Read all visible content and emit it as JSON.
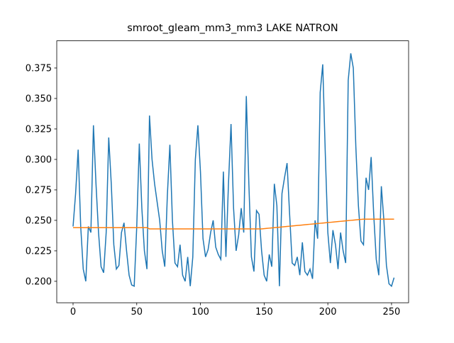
{
  "chart_data": {
    "type": "line",
    "title": "smroot_gleam_mm3_mm3 LAKE NATRON",
    "x": [
      0,
      2,
      4,
      6,
      8,
      10,
      12,
      14,
      16,
      18,
      20,
      22,
      24,
      26,
      28,
      30,
      32,
      34,
      36,
      38,
      40,
      42,
      44,
      46,
      48,
      50,
      52,
      54,
      56,
      58,
      60,
      62,
      64,
      66,
      68,
      70,
      72,
      74,
      76,
      78,
      80,
      82,
      84,
      86,
      88,
      90,
      92,
      94,
      96,
      98,
      100,
      102,
      104,
      106,
      108,
      110,
      112,
      114,
      116,
      118,
      120,
      122,
      124,
      126,
      128,
      130,
      132,
      134,
      136,
      138,
      140,
      142,
      144,
      146,
      148,
      150,
      152,
      154,
      156,
      158,
      160,
      162,
      164,
      166,
      168,
      170,
      172,
      174,
      176,
      178,
      180,
      182,
      184,
      186,
      188,
      190,
      192,
      194,
      196,
      198,
      200,
      202,
      204,
      206,
      208,
      210,
      212,
      214,
      216,
      218,
      220,
      222,
      224,
      226,
      228,
      230,
      232,
      234,
      236,
      238,
      240,
      242,
      244,
      246,
      248,
      250,
      252
    ],
    "series": [
      {
        "color": "#1f77b4",
        "values": [
          0.245,
          0.272,
          0.308,
          0.245,
          0.21,
          0.2,
          0.245,
          0.24,
          0.328,
          0.28,
          0.24,
          0.212,
          0.207,
          0.24,
          0.318,
          0.28,
          0.23,
          0.21,
          0.213,
          0.24,
          0.248,
          0.225,
          0.205,
          0.197,
          0.196,
          0.245,
          0.313,
          0.26,
          0.225,
          0.21,
          0.336,
          0.3,
          0.28,
          0.265,
          0.25,
          0.225,
          0.212,
          0.27,
          0.312,
          0.25,
          0.215,
          0.212,
          0.23,
          0.205,
          0.2,
          0.22,
          0.196,
          0.22,
          0.3,
          0.328,
          0.29,
          0.235,
          0.22,
          0.226,
          0.24,
          0.25,
          0.228,
          0.222,
          0.218,
          0.29,
          0.22,
          0.28,
          0.329,
          0.26,
          0.225,
          0.238,
          0.26,
          0.24,
          0.352,
          0.28,
          0.22,
          0.208,
          0.258,
          0.255,
          0.225,
          0.205,
          0.2,
          0.222,
          0.212,
          0.28,
          0.262,
          0.196,
          0.272,
          0.285,
          0.297,
          0.255,
          0.215,
          0.213,
          0.22,
          0.205,
          0.232,
          0.208,
          0.205,
          0.21,
          0.202,
          0.25,
          0.235,
          0.355,
          0.378,
          0.305,
          0.24,
          0.215,
          0.242,
          0.23,
          0.21,
          0.24,
          0.225,
          0.215,
          0.365,
          0.387,
          0.375,
          0.31,
          0.262,
          0.233,
          0.23,
          0.285,
          0.275,
          0.302,
          0.255,
          0.218,
          0.205,
          0.278,
          0.25,
          0.213,
          0.198,
          0.196,
          0.203
        ]
      },
      {
        "color": "#ff7f0e",
        "values": [
          0.244,
          0.244,
          0.244,
          0.244,
          0.244,
          0.244,
          0.244,
          0.244,
          0.244,
          0.244,
          0.244,
          0.244,
          0.244,
          0.244,
          0.244,
          0.244,
          0.244,
          0.244,
          0.244,
          0.244,
          0.244,
          0.244,
          0.244,
          0.244,
          0.244,
          0.244,
          0.244,
          0.244,
          0.244,
          0.244,
          0.243,
          0.243,
          0.243,
          0.243,
          0.243,
          0.243,
          0.243,
          0.243,
          0.243,
          0.243,
          0.243,
          0.243,
          0.243,
          0.243,
          0.243,
          0.243,
          0.243,
          0.243,
          0.243,
          0.243,
          0.243,
          0.243,
          0.243,
          0.243,
          0.243,
          0.243,
          0.243,
          0.243,
          0.243,
          0.243,
          0.243,
          0.243,
          0.243,
          0.243,
          0.243,
          0.243,
          0.243,
          0.243,
          0.243,
          0.243,
          0.243,
          0.243,
          0.243,
          0.243,
          0.243,
          0.2432,
          0.2434,
          0.2436,
          0.2438,
          0.244,
          0.2442,
          0.2444,
          0.2446,
          0.2448,
          0.245,
          0.2452,
          0.2454,
          0.2456,
          0.2458,
          0.246,
          0.2462,
          0.2464,
          0.2466,
          0.2468,
          0.247,
          0.2472,
          0.2474,
          0.2476,
          0.2478,
          0.248,
          0.2482,
          0.2484,
          0.2486,
          0.2488,
          0.249,
          0.2492,
          0.2494,
          0.2496,
          0.2498,
          0.25,
          0.2502,
          0.2504,
          0.2506,
          0.2508,
          0.251,
          0.251,
          0.251,
          0.251,
          0.251,
          0.251,
          0.251,
          0.251,
          0.251,
          0.251,
          0.251,
          0.251,
          0.251
        ]
      }
    ],
    "xlim": [
      -12.8,
      263.4
    ],
    "xticks": [
      0,
      50,
      100,
      150,
      200,
      250
    ],
    "ylim": [
      0.1824,
      0.3973
    ],
    "yticks": [
      {
        "value": 0.2,
        "label": "0.200"
      },
      {
        "value": 0.225,
        "label": "0.225"
      },
      {
        "value": 0.25,
        "label": "0.250"
      },
      {
        "value": 0.275,
        "label": "0.275"
      },
      {
        "value": 0.3,
        "label": "0.300"
      },
      {
        "value": 0.325,
        "label": "0.325"
      },
      {
        "value": 0.35,
        "label": "0.350"
      },
      {
        "value": 0.375,
        "label": "0.375"
      }
    ]
  }
}
